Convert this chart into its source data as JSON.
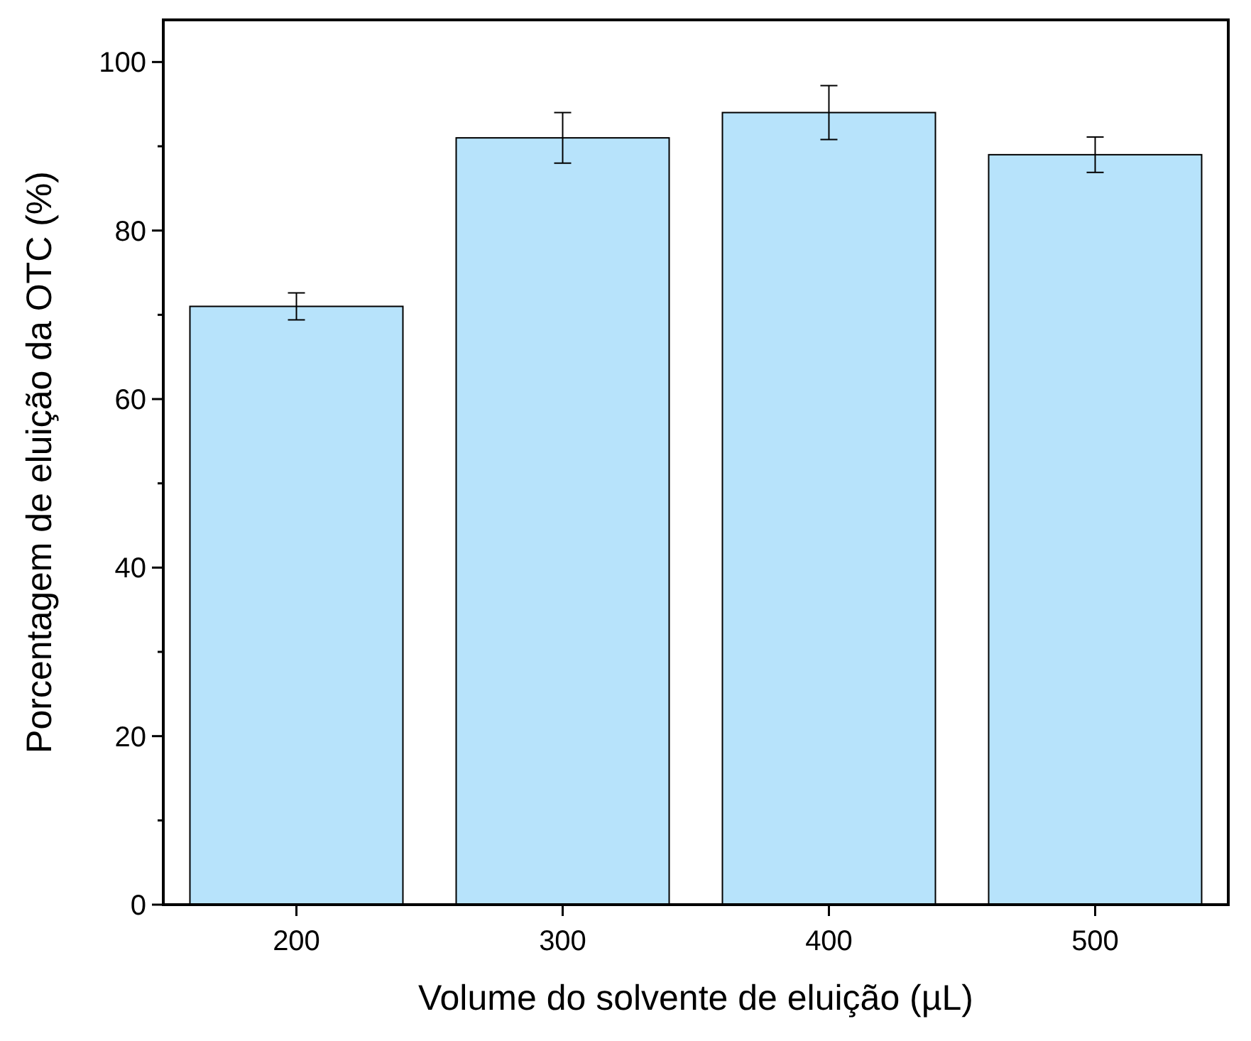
{
  "chart_data": {
    "type": "bar",
    "xlabel": "Volume do solvente de eluição (µL)",
    "ylabel": "Porcentagem de eluição da OTC (%)",
    "categories": [
      "200",
      "300",
      "400",
      "500"
    ],
    "values": [
      71,
      91,
      94,
      89
    ],
    "errors": [
      1.6,
      3,
      3.2,
      2.1
    ],
    "color": "#b7e3fb",
    "ylim": [
      0,
      105
    ],
    "yticks": [
      0,
      {
        "value": 10,
        "label": null
      },
      20,
      {
        "value": 30,
        "label": null
      },
      40,
      {
        "value": 50,
        "label": null
      },
      60,
      {
        "value": 70,
        "label": null
      },
      80,
      {
        "value": 90,
        "label": null
      },
      100
    ],
    "marker": "none"
  }
}
